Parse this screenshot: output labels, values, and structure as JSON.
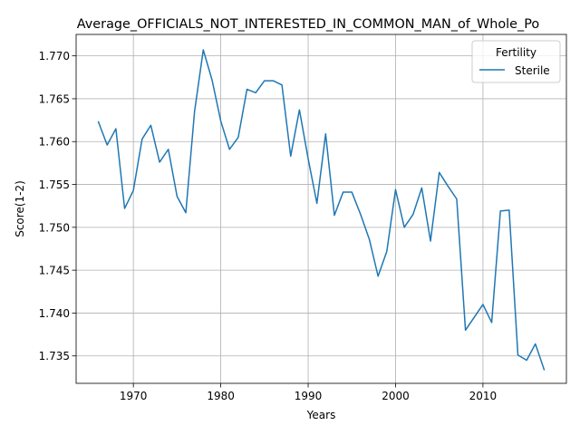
{
  "chart_data": {
    "type": "line",
    "title": "Average_OFFICIALS_NOT_INTERESTED_IN_COMMON_MAN_of_Whole_Po",
    "xlabel": "Years",
    "ylabel": "Score(1-2)",
    "xlim": [
      1963.45,
      2019.55
    ],
    "ylim": [
      1.7318,
      1.7725
    ],
    "xticks": [
      1970,
      1980,
      1990,
      2000,
      2010
    ],
    "xtick_labels": [
      "1970",
      "1980",
      "1990",
      "2000",
      "2010"
    ],
    "yticks": [
      1.735,
      1.74,
      1.745,
      1.75,
      1.755,
      1.76,
      1.765,
      1.77
    ],
    "ytick_labels": [
      "1.735",
      "1.740",
      "1.745",
      "1.750",
      "1.755",
      "1.760",
      "1.765",
      "1.770"
    ],
    "grid": true,
    "legend": {
      "title": "Fertility",
      "position": "top-right"
    },
    "series": [
      {
        "name": "Sterile",
        "color": "#1f77b4",
        "x": [
          1966,
          1967,
          1968,
          1969,
          1970,
          1971,
          1972,
          1973,
          1974,
          1975,
          1976,
          1977,
          1978,
          1979,
          1980,
          1981,
          1982,
          1983,
          1984,
          1985,
          1986,
          1987,
          1988,
          1989,
          1990,
          1991,
          1992,
          1993,
          1994,
          1995,
          1996,
          1997,
          1998,
          1999,
          2000,
          2001,
          2002,
          2003,
          2004,
          2005,
          2006,
          2007,
          2008,
          2010,
          2011,
          2012,
          2013,
          2014,
          2015,
          2016,
          2017
        ],
        "y": [
          1.7623,
          1.7596,
          1.7615,
          1.7522,
          1.7543,
          1.7603,
          1.7619,
          1.7576,
          1.7591,
          1.7536,
          1.7517,
          1.7635,
          1.7707,
          1.7672,
          1.7624,
          1.7591,
          1.7605,
          1.7661,
          1.7657,
          1.7671,
          1.7671,
          1.7666,
          1.7583,
          1.7637,
          1.758,
          1.7528,
          1.7609,
          1.7514,
          1.7541,
          1.7541,
          1.7515,
          1.7486,
          1.7443,
          1.7472,
          1.7544,
          1.75,
          1.7515,
          1.7546,
          1.7484,
          1.7564,
          1.7548,
          1.7533,
          1.738,
          1.741,
          1.7389,
          1.7519,
          1.752,
          1.7351,
          1.7345,
          1.7364,
          1.7334
        ]
      }
    ]
  }
}
